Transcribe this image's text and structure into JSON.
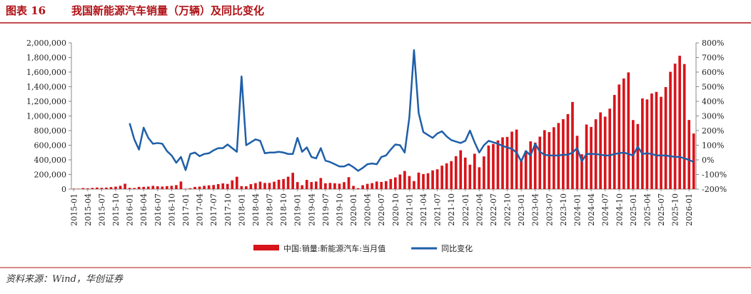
{
  "chart_data": {
    "type": "bar-line",
    "figure_label": "图表 16",
    "title": "我国新能源汽车销量（万辆）及同比变化",
    "source": "资料来源：Wind，华创证券",
    "categories": [
      "2015-01",
      null,
      null,
      "2015-04",
      null,
      null,
      "2015-07",
      null,
      null,
      "2015-10",
      null,
      null,
      "2016-01",
      null,
      null,
      "2016-04",
      null,
      null,
      "2016-07",
      null,
      null,
      "2016-10",
      null,
      null,
      "2017-01",
      null,
      null,
      "2017-04",
      null,
      null,
      "2017-07",
      null,
      null,
      "2017-10",
      null,
      null,
      "2018-01",
      null,
      null,
      "2018-04",
      null,
      null,
      "2018-07",
      null,
      null,
      "2018-10",
      null,
      null,
      "2019-01",
      null,
      null,
      "2019-04",
      null,
      null,
      "2019-07",
      null,
      null,
      "2019-10",
      null,
      null,
      "2020-01",
      null,
      null,
      "2020-04",
      null,
      null,
      "2020-07",
      null,
      null,
      "2020-10",
      null,
      null,
      "2021-01",
      null,
      null,
      "2021-04",
      null,
      null,
      "2021-07",
      null,
      null,
      "2021-10",
      null,
      null,
      "2022-01",
      null,
      null,
      "2022-04",
      null,
      null,
      "2022-07",
      null,
      null,
      "2022-10",
      null,
      null,
      "2023-01",
      null,
      null,
      "2023-04",
      null,
      null,
      "2023-07",
      null,
      null,
      "2023-10",
      null,
      null,
      "2024-01",
      null,
      null,
      "2024-04",
      null,
      null,
      "2024-07",
      null,
      null,
      "2024-10",
      null,
      null,
      "2025-01",
      null,
      null,
      "2025-04",
      null,
      null,
      "2025-07",
      null,
      null,
      "2025-10",
      null,
      null,
      "2026-01",
      null
    ],
    "series": [
      {
        "name": "中国:销量:新能源汽车:当月值",
        "color": "#d7141a",
        "type": "bar",
        "values": [
          6600,
          5300,
          14400,
          11300,
          16500,
          21500,
          17400,
          21300,
          27500,
          33800,
          45100,
          73600,
          16400,
          15300,
          30400,
          31200,
          34400,
          44700,
          38400,
          35200,
          40900,
          45300,
          54100,
          104000,
          5600,
          12400,
          30200,
          34400,
          45000,
          51700,
          56000,
          68600,
          78000,
          71100,
          120000,
          169000,
          40600,
          39200,
          67900,
          81800,
          102000,
          84400,
          84600,
          101000,
          128000,
          138000,
          170000,
          223000,
          96000,
          53000,
          126000,
          97000,
          104000,
          152000,
          80000,
          85000,
          80000,
          75000,
          95000,
          163000,
          44000,
          13000,
          53000,
          72000,
          82000,
          104000,
          98000,
          109000,
          138000,
          160000,
          200000,
          248000,
          179000,
          110000,
          226000,
          206000,
          217000,
          256000,
          271000,
          321000,
          353000,
          383000,
          450000,
          531000,
          431000,
          334000,
          484000,
          299000,
          447000,
          596000,
          617000,
          666000,
          708000,
          714000,
          786000,
          814000,
          408000,
          525000,
          653000,
          636000,
          717000,
          806000,
          780000,
          846000,
          904000,
          956000,
          1026000,
          1191000,
          729000,
          477000,
          883000,
          850000,
          955000,
          1049000,
          991000,
          1100000,
          1287000,
          1430000,
          1512000,
          1596000,
          944000,
          890000,
          1240000,
          1226000,
          1307000,
          1329000,
          1262000,
          1395000,
          1604000,
          1715000,
          1823000,
          1710000,
          945000,
          760000
        ]
      },
      {
        "name": "同比变化",
        "color": "#1f5fa8",
        "type": "line",
        "axis": "y2",
        "values": [
          null,
          null,
          null,
          null,
          null,
          null,
          null,
          null,
          null,
          null,
          null,
          null,
          250,
          140,
          70,
          220,
          150,
          110,
          115,
          110,
          60,
          30,
          -20,
          20,
          -70,
          40,
          50,
          25,
          40,
          45,
          65,
          80,
          80,
          105,
          80,
          55,
          570,
          100,
          120,
          140,
          130,
          45,
          50,
          50,
          55,
          50,
          40,
          40,
          150,
          55,
          85,
          20,
          10,
          80,
          -5,
          -15,
          -30,
          -45,
          -45,
          -30,
          -50,
          -75,
          -55,
          -30,
          -25,
          -30,
          20,
          30,
          70,
          105,
          100,
          50,
          290,
          750,
          320,
          190,
          170,
          150,
          180,
          195,
          160,
          135,
          125,
          115,
          130,
          200,
          120,
          50,
          100,
          130,
          120,
          110,
          95,
          85,
          75,
          50,
          -10,
          60,
          30,
          110,
          55,
          35,
          30,
          30,
          30,
          35,
          35,
          50,
          80,
          -10,
          40,
          40,
          40,
          35,
          30,
          30,
          40,
          45,
          50,
          40,
          30,
          90,
          40,
          45,
          40,
          30,
          30,
          30,
          25,
          20,
          20,
          10,
          0,
          -15
        ]
      }
    ],
    "ylim": [
      0,
      2000000
    ],
    "yticks": [
      0,
      {
        "value": 200000,
        "label": "200,000"
      },
      {
        "value": 400000,
        "label": "400,000"
      },
      {
        "value": 600000,
        "label": "600,000"
      },
      {
        "value": 800000,
        "label": "800,000"
      },
      {
        "value": 1000000,
        "label": "1,000,000"
      },
      {
        "value": 1200000,
        "label": "1,200,000"
      },
      {
        "value": 1400000,
        "label": "1,400,000"
      },
      {
        "value": 1600000,
        "label": "1,600,000"
      },
      {
        "value": 1800000,
        "label": "1,800,000"
      },
      {
        "value": 2000000,
        "label": "2,000,000"
      }
    ],
    "y2lim": [
      -200,
      800
    ],
    "y2ticks": [
      {
        "value": -200,
        "label": "-200%"
      },
      {
        "value": -100,
        "label": "-100%"
      },
      {
        "value": 0,
        "label": "0%"
      },
      {
        "value": 100,
        "label": "100%"
      },
      {
        "value": 200,
        "label": "200%"
      },
      {
        "value": 300,
        "label": "300%"
      },
      {
        "value": 400,
        "label": "400%"
      },
      {
        "value": 500,
        "label": "500%"
      },
      {
        "value": 600,
        "label": "600%"
      },
      {
        "value": 700,
        "label": "700%"
      },
      {
        "value": 800,
        "label": "800%"
      }
    ],
    "legend": "bottom",
    "grid": false
  }
}
